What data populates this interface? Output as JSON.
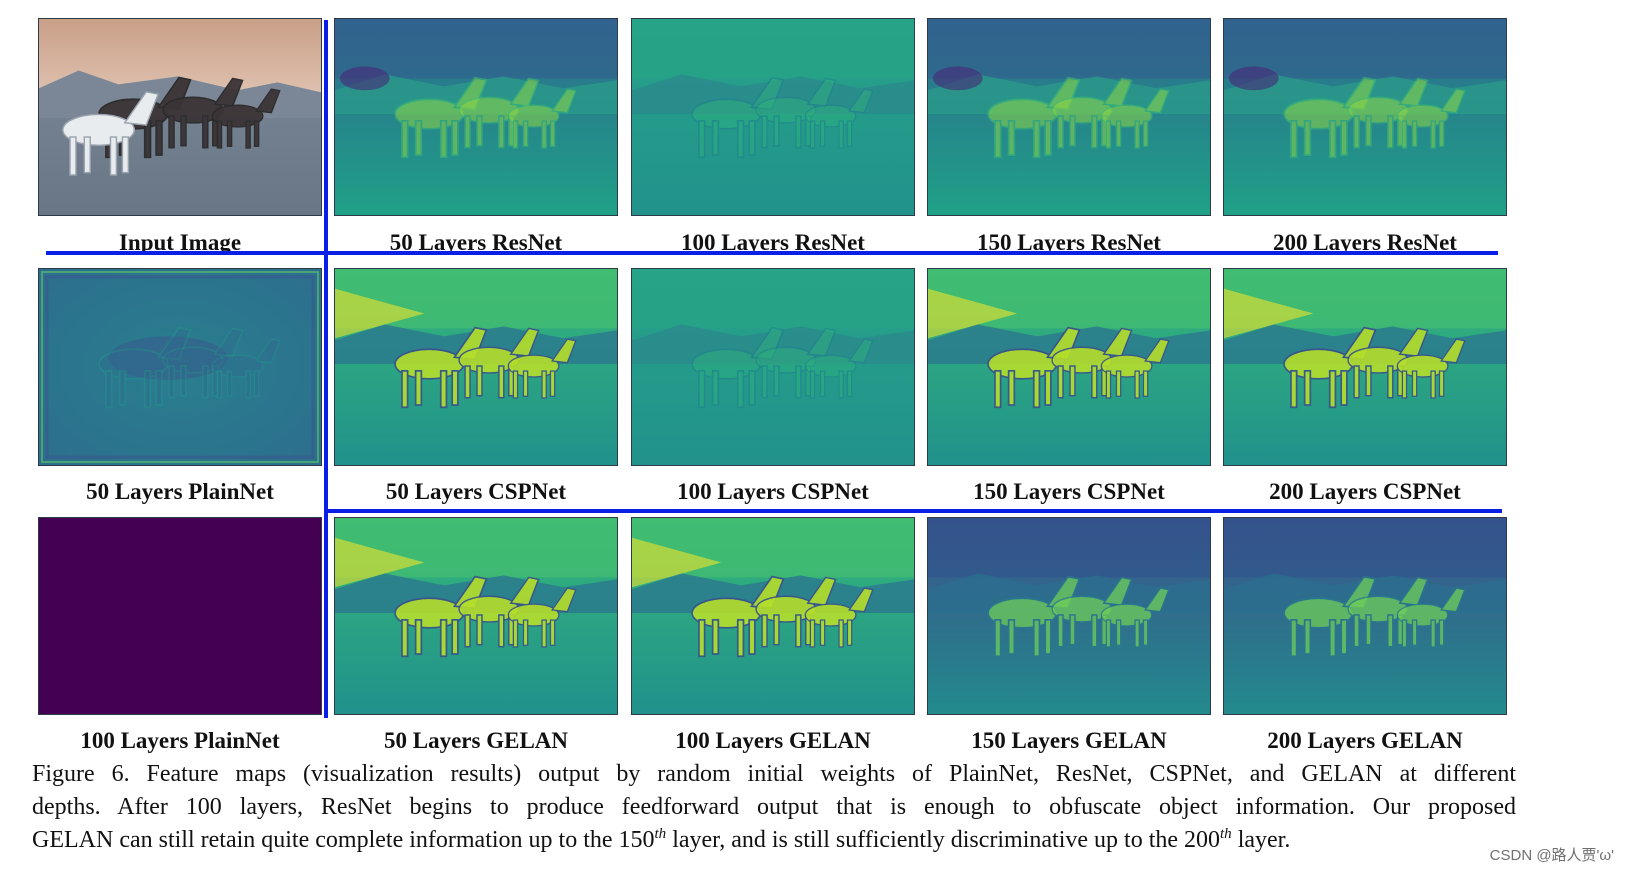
{
  "figure": {
    "panels": [
      {
        "label": "Input Image",
        "style": "input"
      },
      {
        "label": "50 Layers ResNet",
        "style": "blurry"
      },
      {
        "label": "100 Layers ResNet",
        "style": "faint"
      },
      {
        "label": "150 Layers ResNet",
        "style": "blurry"
      },
      {
        "label": "200 Layers ResNet",
        "style": "blurry"
      },
      {
        "label": "50 Layers PlainNet",
        "style": "plain"
      },
      {
        "label": "50 Layers CSPNet",
        "style": "clear"
      },
      {
        "label": "100 Layers CSPNet",
        "style": "faint"
      },
      {
        "label": "150 Layers CSPNet",
        "style": "clear"
      },
      {
        "label": "200 Layers CSPNet",
        "style": "clear"
      },
      {
        "label": "100 Layers PlainNet",
        "style": "solid"
      },
      {
        "label": "50 Layers GELAN",
        "style": "clear"
      },
      {
        "label": "100 Layers GELAN",
        "style": "clear"
      },
      {
        "label": "150 Layers GELAN",
        "style": "dark"
      },
      {
        "label": "200 Layers GELAN",
        "style": "dark"
      }
    ],
    "colors": {
      "divider": "#0a1fe6",
      "viridis_dark": "#440154",
      "viridis_mid": "#21918c",
      "viridis_light": "#fde725"
    }
  },
  "caption": {
    "line1": "Figure 6.  Feature maps (visualization results) output by random initial weights of PlainNet, ResNet, CSPNet, and GELAN at different",
    "line2": "depths.  After 100 layers, ResNet begins to produce feedforward output that is enough to obfuscate object information.  Our proposed",
    "line3a": "GELAN can still retain quite complete information up to the 150",
    "sup1": "th",
    "line3b": " layer, and is still sufficiently discriminative up to the 200",
    "sup2": "th",
    "line3c": " layer."
  },
  "watermark": "CSDN @路人贾'ω'"
}
